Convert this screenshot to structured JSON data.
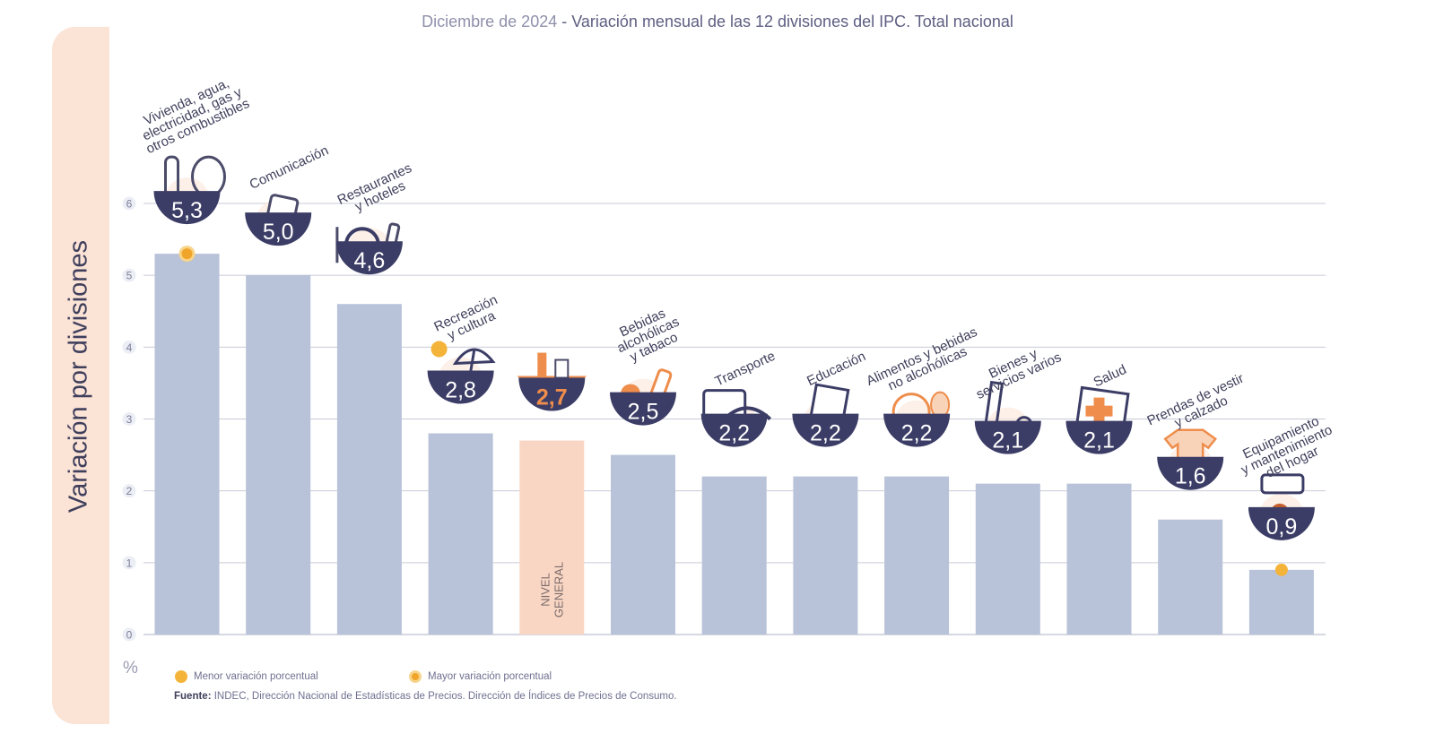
{
  "header": {
    "title_date": "Diciembre de 2024",
    "title_separator": " - ",
    "title_main": "Variación mensual de las 12 divisiones del IPC. Total nacional"
  },
  "axis": {
    "ylabel": "Variación por divisiones",
    "unit": "%"
  },
  "legend": {
    "min_label": "Menor variación porcentual",
    "max_label": "Mayor variación porcentual"
  },
  "source": {
    "label": "Fuente:",
    "text": "INDEC, Dirección Nacional de Estadísticas de Precios. Dirección de Índices de Precios de Consumo."
  },
  "colors": {
    "bar": "#b8c2d8",
    "general_bar": "#f9d6c3",
    "bubble": "#3c3d66",
    "general_value": "#ee8d4c",
    "grid": "#c9cbd9",
    "accent": "#f4b43a"
  },
  "chart_data": {
    "type": "bar",
    "title": "Diciembre de 2024 - Variación mensual de las 12 divisiones del IPC. Total nacional",
    "ylabel": "Variación por divisiones",
    "ylim": [
      0,
      6
    ],
    "yticks": [
      "0",
      "1",
      "2",
      "3",
      "4",
      "5",
      "6"
    ],
    "grid": true,
    "categories": [
      "Vivienda, agua, electricidad, gas y otros combustibles",
      "Comunicación",
      "Restaurantes y hoteles",
      "Recreación y cultura",
      "NIVEL GENERAL",
      "Bebidas alcohólicas y tabaco",
      "Transporte",
      "Educación",
      "Alimentos y bebidas no alcohólicas",
      "Bienes y servicios varios",
      "Salud",
      "Prendas de vestir y calzado",
      "Equipamiento y mantenimiento del hogar"
    ],
    "category_lines": [
      [
        "Vivienda, agua,",
        "electricidad, gas y",
        "otros combustibles"
      ],
      [
        "Comunicación"
      ],
      [
        "Restaurantes",
        "y hoteles"
      ],
      [
        "Recreación",
        "y cultura"
      ],
      [
        "NIVEL",
        "GENERAL"
      ],
      [
        "Bebidas",
        "alcohólicas",
        "y tabaco"
      ],
      [
        "Transporte"
      ],
      [
        "Educación"
      ],
      [
        "Alimentos y bebidas",
        "no alcohólicas"
      ],
      [
        "Bienes y",
        "servicios varios"
      ],
      [
        "Salud"
      ],
      [
        "Prendas de vestir",
        "y calzado"
      ],
      [
        "Equipamiento",
        "y mantenimiento",
        "del hogar"
      ]
    ],
    "values": [
      5.3,
      5.0,
      4.6,
      2.8,
      2.7,
      2.5,
      2.2,
      2.2,
      2.2,
      2.1,
      2.1,
      1.6,
      0.9
    ],
    "value_labels": [
      "5,3",
      "5,0",
      "4,6",
      "2,8",
      "2,7",
      "2,5",
      "2,2",
      "2,2",
      "2,2",
      "2,1",
      "2,1",
      "1,6",
      "0,9"
    ],
    "general_index": 4,
    "max_index": 0,
    "min_index": 12,
    "icons": [
      "house-utilities-icon",
      "smartphone-icon",
      "dining-icon",
      "beach-umbrella-icon",
      "shopping-basket-icon",
      "wine-bottle-icon",
      "transit-card-icon",
      "notebook-icon",
      "food-icon",
      "barber-tools-icon",
      "first-aid-icon",
      "tshirt-icon",
      "air-conditioner-icon"
    ]
  }
}
